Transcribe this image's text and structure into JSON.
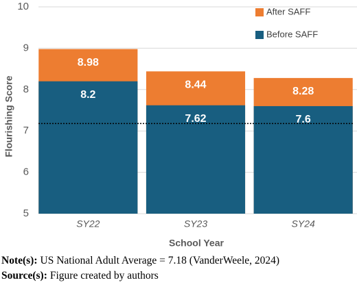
{
  "chart_data": {
    "type": "overlay_bar",
    "y_label": "Flourishing Score",
    "x_label": "School Year",
    "categories": [
      "SY22",
      "SY23",
      "SY24"
    ],
    "series": [
      {
        "name": "After SAFF",
        "color": "#ed7d31",
        "values": [
          8.98,
          8.44,
          8.28
        ]
      },
      {
        "name": "Before SAFF",
        "color": "#185e80",
        "values": [
          8.2,
          7.62,
          7.6
        ]
      }
    ],
    "ylim": [
      5,
      10
    ],
    "yticks": [
      5,
      6,
      7,
      8,
      9,
      10
    ],
    "grid": true,
    "reference_line": 7.18,
    "legend": "top-right"
  },
  "notes": [
    {
      "label": "Note(s):",
      "text": "US National Adult Average = 7.18 (VanderWeele, 2024)"
    },
    {
      "label": "Source(s):",
      "text": "Figure created by authors"
    }
  ]
}
